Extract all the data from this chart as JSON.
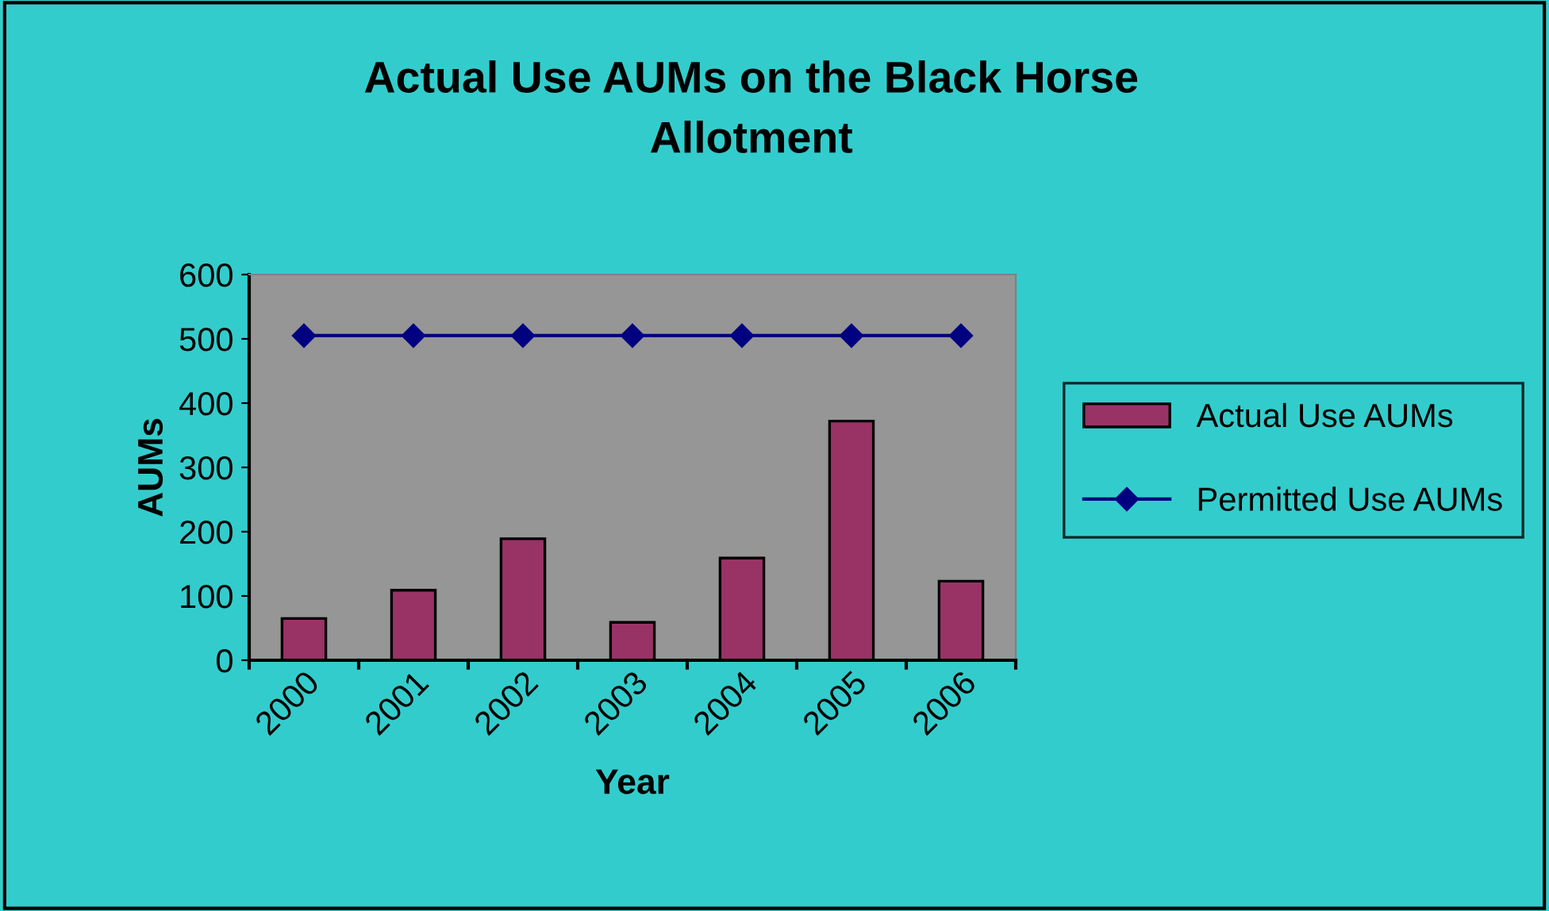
{
  "chart_data": {
    "type": "bar",
    "title": "Actual Use AUMs on the Black Horse\nAllotment",
    "xlabel": "Year",
    "ylabel": "AUMs",
    "categories": [
      "2000",
      "2001",
      "2002",
      "2003",
      "2004",
      "2005",
      "2006"
    ],
    "series": [
      {
        "name": "Actual Use AUMs",
        "color": "#993366",
        "values": [
          65,
          109,
          189,
          59,
          159,
          372,
          123
        ]
      },
      {
        "name": "Permitted Use AUMs",
        "type": "line",
        "color": "#000080",
        "marker": "diamond",
        "values": [
          505,
          505,
          505,
          505,
          505,
          505,
          505
        ]
      }
    ],
    "ylim": [
      0,
      600
    ],
    "yticks": [
      0,
      100,
      200,
      300,
      400,
      500,
      600
    ],
    "grid": false,
    "legend": "right"
  }
}
